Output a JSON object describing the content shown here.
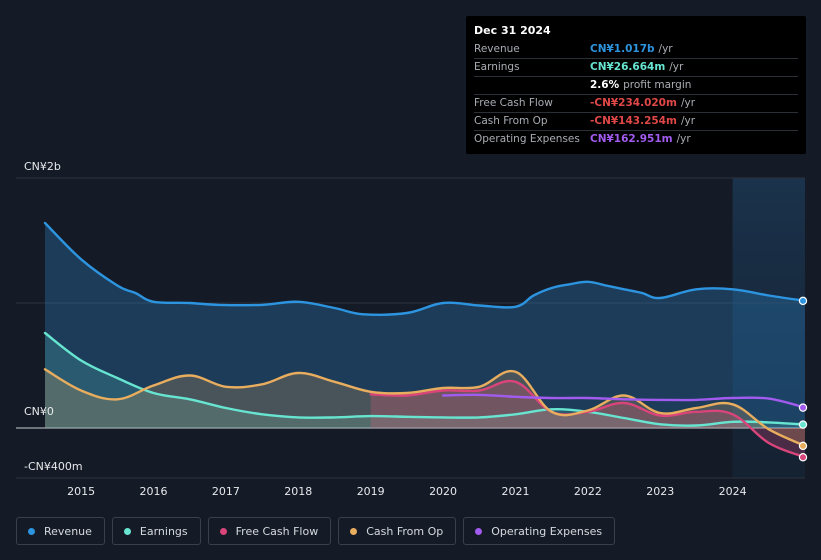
{
  "chart_data": {
    "type": "line",
    "x_axis": {
      "ticks": [
        2015,
        2016,
        2017,
        2018,
        2019,
        2020,
        2021,
        2022,
        2023,
        2024
      ],
      "tick_labels": [
        "2015",
        "2016",
        "2017",
        "2018",
        "2019",
        "2020",
        "2021",
        "2022",
        "2023",
        "2024"
      ],
      "range": [
        2014.1,
        2025.0
      ]
    },
    "y_axis": {
      "range": [
        -400,
        2000
      ],
      "labels": [
        {
          "value": 2000,
          "text": "CN¥2b"
        },
        {
          "value": 0,
          "text": "CN¥0"
        },
        {
          "value": -400,
          "text": "-CN¥400m"
        }
      ],
      "unit": "CN¥ millions"
    },
    "highlight_start": 2024.0,
    "series": [
      {
        "name": "Revenue",
        "color": "#2d94e0",
        "fill": true,
        "x": [
          2014.5,
          2015.0,
          2015.5,
          2015.75,
          2016.0,
          2016.5,
          2016.9,
          2017.5,
          2018.0,
          2018.5,
          2018.9,
          2019.5,
          2020.0,
          2020.5,
          2021.0,
          2021.25,
          2021.5,
          2021.75,
          2022.0,
          2022.25,
          2022.5,
          2022.75,
          2023.0,
          2023.5,
          2024.0,
          2024.5,
          2025.0
        ],
        "y": [
          1640,
          1350,
          1140,
          1080,
          1010,
          1000,
          985,
          985,
          1010,
          960,
          910,
          920,
          1000,
          980,
          970,
          1060,
          1120,
          1150,
          1170,
          1140,
          1110,
          1080,
          1040,
          1110,
          1110,
          1060,
          1017
        ]
      },
      {
        "name": "Earnings",
        "color": "#67e5d1",
        "fill": true,
        "x": [
          2014.5,
          2015.0,
          2015.5,
          2016.0,
          2016.5,
          2017.0,
          2017.5,
          2018.0,
          2018.5,
          2019.0,
          2019.5,
          2020.0,
          2020.5,
          2021.0,
          2021.5,
          2022.0,
          2022.5,
          2023.0,
          2023.5,
          2024.0,
          2024.5,
          2025.0
        ],
        "y": [
          760,
          540,
          400,
          280,
          230,
          160,
          110,
          85,
          85,
          95,
          90,
          85,
          85,
          110,
          150,
          130,
          80,
          30,
          20,
          50,
          45,
          27
        ]
      },
      {
        "name": "Free Cash Flow",
        "color": "#d9457a",
        "fill": true,
        "x": [
          2019.0,
          2019.5,
          2020.0,
          2020.5,
          2021.0,
          2021.5,
          2022.0,
          2022.5,
          2023.0,
          2023.5,
          2024.0,
          2024.5,
          2025.0
        ],
        "y": [
          270,
          260,
          300,
          300,
          370,
          130,
          130,
          200,
          100,
          130,
          110,
          -120,
          -234
        ]
      },
      {
        "name": "Cash From Op",
        "color": "#e8ad5e",
        "fill": true,
        "x": [
          2014.5,
          2015.0,
          2015.5,
          2016.0,
          2016.5,
          2017.0,
          2017.5,
          2018.0,
          2018.5,
          2019.0,
          2019.5,
          2020.0,
          2020.5,
          2021.0,
          2021.5,
          2022.0,
          2022.5,
          2023.0,
          2023.5,
          2024.0,
          2024.5,
          2025.0
        ],
        "y": [
          470,
          300,
          230,
          340,
          420,
          330,
          350,
          440,
          370,
          290,
          280,
          320,
          330,
          450,
          130,
          140,
          260,
          120,
          160,
          190,
          -10,
          -143
        ]
      },
      {
        "name": "Operating Expenses",
        "color": "#a25bef",
        "fill": false,
        "x": [
          2020.0,
          2020.5,
          2021.0,
          2021.5,
          2022.0,
          2022.5,
          2023.0,
          2023.5,
          2024.0,
          2024.5,
          2025.0
        ],
        "y": [
          260,
          265,
          250,
          240,
          240,
          230,
          225,
          225,
          240,
          235,
          163
        ]
      }
    ]
  },
  "tooltip": {
    "date": "Dec 31 2024",
    "rows": [
      {
        "label": "Revenue",
        "value": "CN¥1.017b",
        "unit": "/yr",
        "color": "#2d94e0"
      },
      {
        "label": "Earnings",
        "value": "CN¥26.664m",
        "unit": "/yr",
        "color": "#67e5d1"
      },
      {
        "label": "",
        "value": "2.6%",
        "unit": "profit margin",
        "color": "#ffffff"
      },
      {
        "label": "Free Cash Flow",
        "value": "-CN¥234.020m",
        "unit": "/yr",
        "color": "#e04848"
      },
      {
        "label": "Cash From Op",
        "value": "-CN¥143.254m",
        "unit": "/yr",
        "color": "#e04848"
      },
      {
        "label": "Operating Expenses",
        "value": "CN¥162.951m",
        "unit": "/yr",
        "color": "#a25bef"
      }
    ]
  },
  "legend": [
    {
      "label": "Revenue",
      "color": "#2d94e0"
    },
    {
      "label": "Earnings",
      "color": "#67e5d1"
    },
    {
      "label": "Free Cash Flow",
      "color": "#d9457a"
    },
    {
      "label": "Cash From Op",
      "color": "#e8ad5e"
    },
    {
      "label": "Operating Expenses",
      "color": "#a25bef"
    }
  ]
}
